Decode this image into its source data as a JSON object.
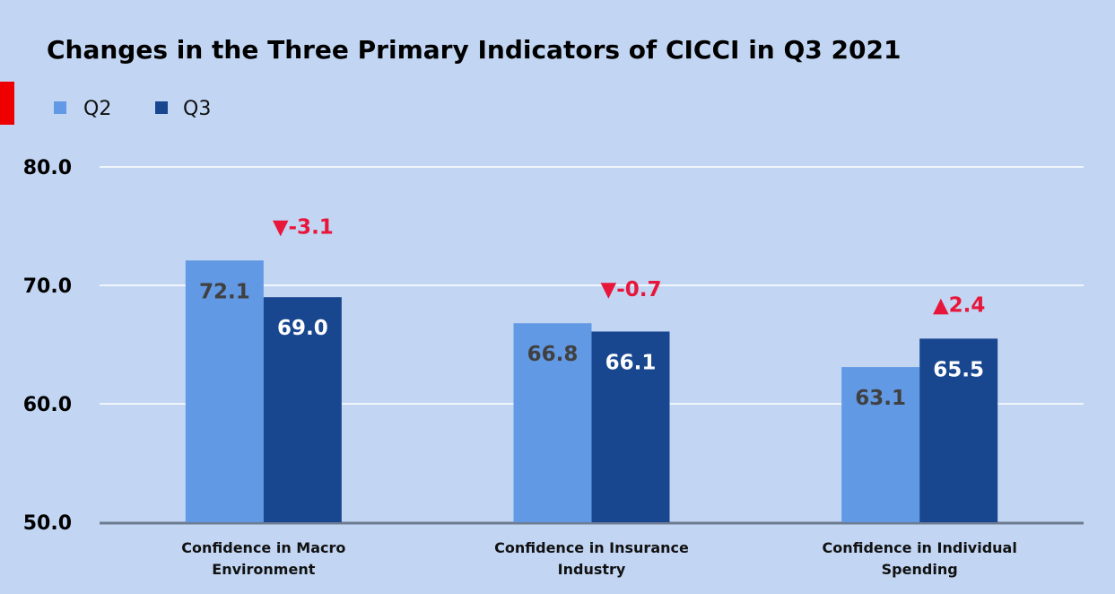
{
  "chart_data": {
    "type": "bar",
    "title": "Changes in the Three Primary Indicators of CICCI in Q3 2021",
    "categories": [
      [
        "Confidence in Macro",
        "Environment"
      ],
      [
        "Confidence in Insurance",
        "Industry"
      ],
      [
        "Confidence in Individual",
        "Spending"
      ]
    ],
    "series": [
      {
        "name": "Q2",
        "values": [
          72.1,
          66.8,
          63.1
        ],
        "labels": [
          "72.1",
          "66.8",
          "63.1"
        ]
      },
      {
        "name": "Q3",
        "values": [
          69.0,
          66.1,
          65.5
        ],
        "labels": [
          "69.0",
          "66.1",
          "65.5"
        ]
      }
    ],
    "changes": [
      {
        "text": "▼-3.1",
        "value": -3.1
      },
      {
        "text": "▼-0.7",
        "value": -0.7
      },
      {
        "text": "▲2.4",
        "value": 2.4
      }
    ],
    "yticks": [
      "50.0",
      "60.0",
      "70.0",
      "80.0"
    ],
    "ylim": [
      50,
      80
    ],
    "grid": true,
    "legend_position": "top-left",
    "colors": {
      "background": "#c2d6f3",
      "q2": "#6299e4",
      "q3": "#18468f",
      "delta": "#e8163a",
      "grid": "#ffffff",
      "axis": "#6d7c90",
      "marker": "#ee0000"
    }
  }
}
